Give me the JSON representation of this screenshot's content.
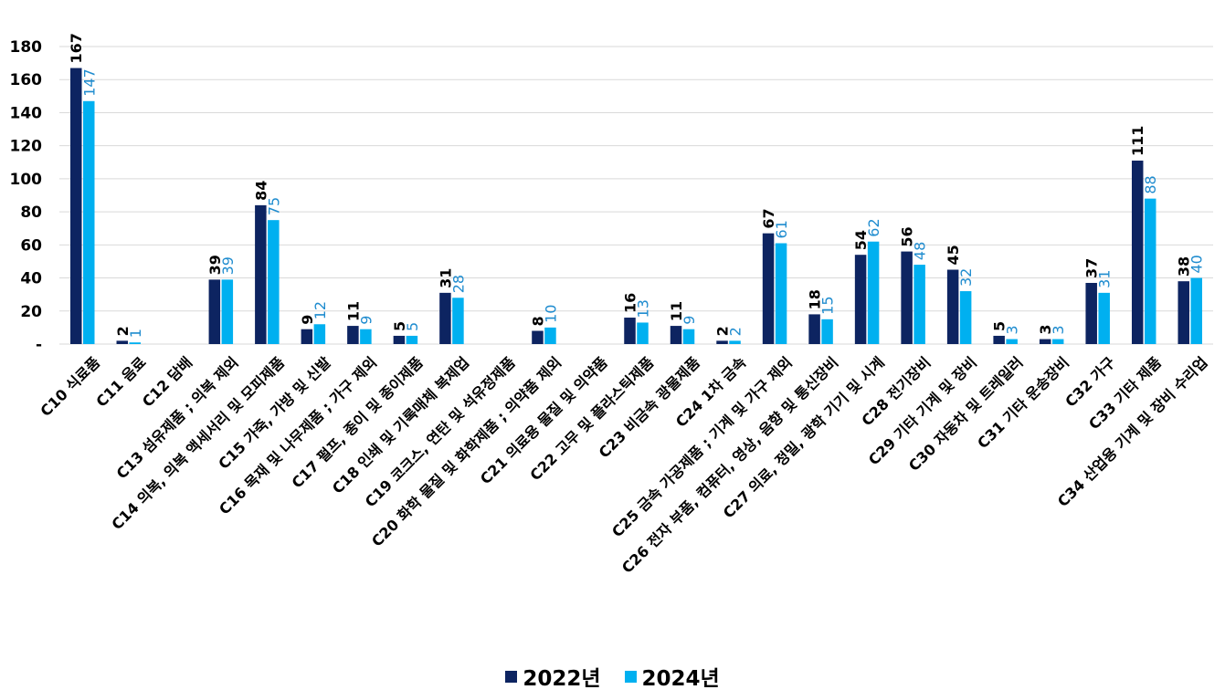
{
  "chart_data": {
    "type": "bar",
    "title": "",
    "xlabel": "",
    "ylabel": "",
    "ylim": [
      0,
      180
    ],
    "yticks": [
      0,
      20,
      40,
      60,
      80,
      100,
      120,
      140,
      160,
      180
    ],
    "ytick_labels": [
      "-",
      "20",
      "40",
      "60",
      "80",
      "100",
      "120",
      "140",
      "160",
      "180"
    ],
    "grid": true,
    "legend_position": "bottom",
    "categories": [
      "C10 식료품",
      "C11 음료",
      "C12 담배",
      "C13 섬유제품 ; 의복 제외",
      "C14 의복, 의복 액세서리 및 모피제품",
      "C15 가죽, 가방 및 신발",
      "C16 목재 및 나무제품 ; 가구 제외",
      "C17 펄프, 종이 및 종이제품",
      "C18 인쇄 및 기록매체 복제업",
      "C19 코크스, 연탄 및 석유정제품",
      "C20 화학 물질 및 화학제품 ; 의약품 제외",
      "C21 의료용 물질 및 의약품",
      "C22 고무 및 플라스틱제품",
      "C23 비금속 광물제품",
      "C24 1차 금속",
      "C25 금속 가공제품 ; 기계 및 가구 제외",
      "C26 전자 부품, 컴퓨터, 영상, 음향 및 통신장비",
      "C27 의료, 정밀, 광학 기기 및 시계",
      "C28 전기장비",
      "C29 기타 기계 및 장비",
      "C30 자동차 및 트레일러",
      "C31 기타 운송장비",
      "C32 가구",
      "C33 기타 제품",
      "C34 산업용 기계 및 장비 수리업"
    ],
    "series": [
      {
        "name": "2022년",
        "color": "#0d2461",
        "label_color": "#000000",
        "values": [
          167,
          2,
          null,
          39,
          84,
          9,
          11,
          5,
          31,
          null,
          8,
          null,
          16,
          11,
          2,
          67,
          18,
          54,
          56,
          45,
          5,
          3,
          37,
          111,
          38
        ]
      },
      {
        "name": "2024년",
        "color": "#00b0f0",
        "label_color": "#1f8ccf",
        "values": [
          147,
          1,
          null,
          39,
          75,
          12,
          9,
          5,
          28,
          null,
          10,
          null,
          13,
          9,
          2,
          61,
          15,
          62,
          48,
          32,
          3,
          3,
          31,
          88,
          40
        ]
      }
    ]
  }
}
